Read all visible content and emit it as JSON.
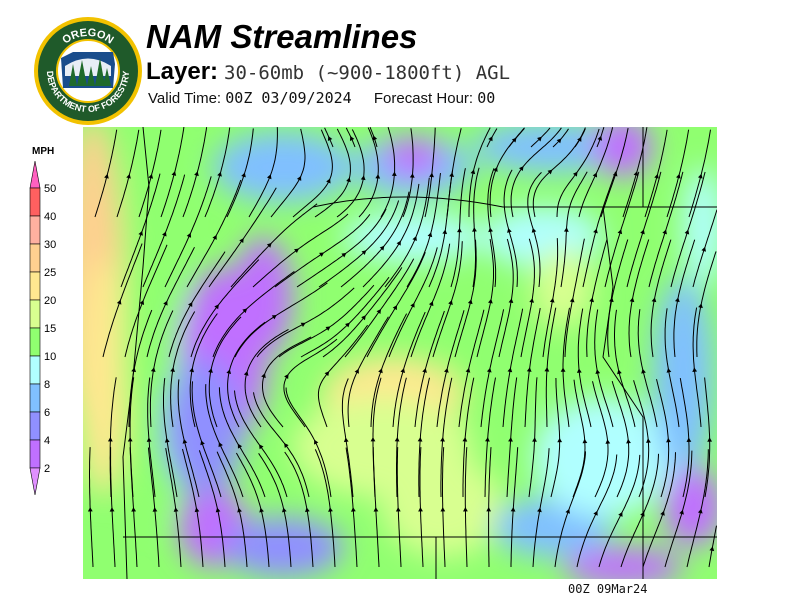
{
  "header": {
    "title": "NAM Streamlines",
    "layer_label": "Layer:",
    "layer_value": "30-60mb (~900-1800ft) AGL",
    "valid_label": "Valid Time:",
    "valid_value": "00Z 03/09/2024",
    "forecast_label": "Forecast Hour:",
    "forecast_value": "00"
  },
  "logo": {
    "top_text": "OREGON",
    "bottom_text": "DEPARTMENT OF FORESTRY"
  },
  "legend": {
    "unit": "MPH",
    "bins": [
      {
        "label": "2",
        "color": "#c070ff"
      },
      {
        "label": "4",
        "color": "#9090ff"
      },
      {
        "label": "6",
        "color": "#80c0ff"
      },
      {
        "label": "8",
        "color": "#b0ffff"
      },
      {
        "label": "10",
        "color": "#90ff70"
      },
      {
        "label": "15",
        "color": "#d8ff90"
      },
      {
        "label": "20",
        "color": "#ffe890"
      },
      {
        "label": "25",
        "color": "#ffd090"
      },
      {
        "label": "30",
        "color": "#ffb0a0"
      },
      {
        "label": "40",
        "color": "#ff6060"
      },
      {
        "label": "50",
        "color": null
      }
    ],
    "over_color": "#ff60c0",
    "under_color": "#e090ff"
  },
  "footer": {
    "stamp": "00Z 09Mar24"
  }
}
